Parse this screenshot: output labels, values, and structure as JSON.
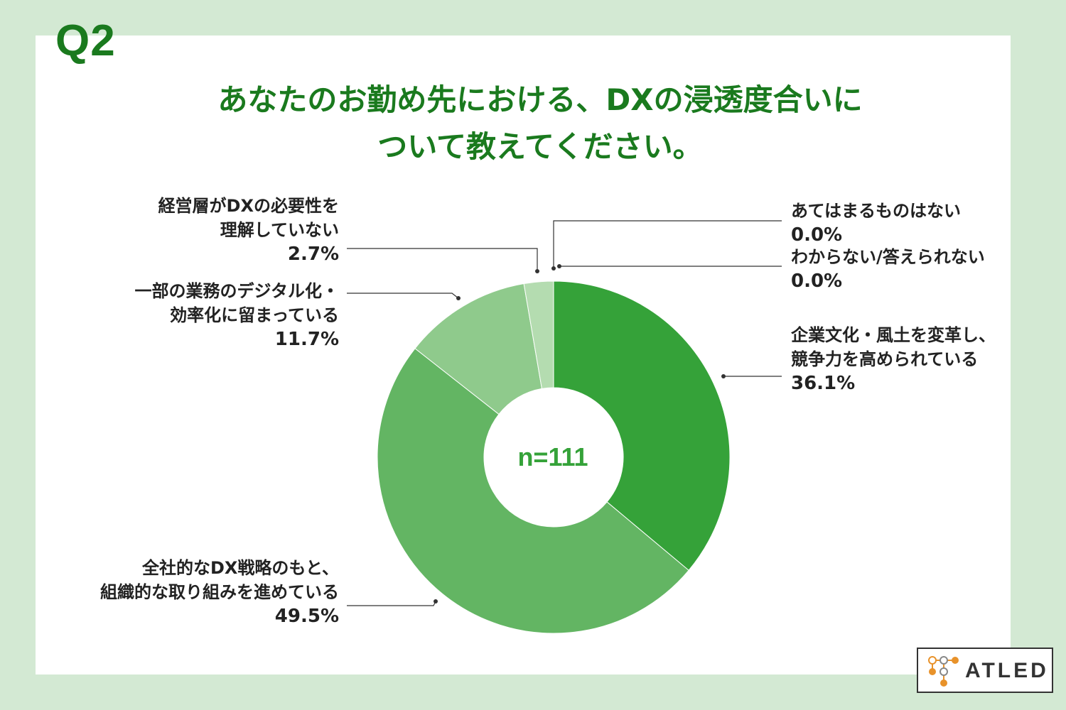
{
  "question_label": "Q2",
  "title_lines": [
    "あなたのお勤め先における、DXの浸透度合いに",
    "ついて教えてください。"
  ],
  "center_label": "n=111",
  "colors": {
    "background": "#d3e9d3",
    "title": "#1a7a1e",
    "slice_1": "#35a239",
    "slice_2": "#63b563",
    "slice_3": "#8fca8c",
    "slice_4": "#b4dcb0",
    "slice_5": "#cfe9cc",
    "slice_6": "#e0f1dd"
  },
  "logo": {
    "text": "ATLED"
  },
  "chart_data": {
    "type": "pie",
    "subtype": "donut",
    "start_angle_deg": 0,
    "direction": "clockwise",
    "sample_size": "n=111",
    "slices": [
      {
        "label_lines": [
          "企業文化・風土を変革し、",
          "競争力を高められている"
        ],
        "value": 36.1,
        "value_label": "36.1%",
        "color": "#35a239"
      },
      {
        "label_lines": [
          "全社的なDX戦略のもと、",
          "組織的な取り組みを進めている"
        ],
        "value": 49.5,
        "value_label": "49.5%",
        "color": "#63b563"
      },
      {
        "label_lines": [
          "一部の業務のデジタル化・",
          "効率化に留まっている"
        ],
        "value": 11.7,
        "value_label": "11.7%",
        "color": "#8fca8c"
      },
      {
        "label_lines": [
          "経営層がDXの必要性を",
          "理解していない"
        ],
        "value": 2.7,
        "value_label": "2.7%",
        "color": "#b4dcb0"
      },
      {
        "label_lines": [
          "わからない/答えられない"
        ],
        "value": 0.0,
        "value_label": "0.0%",
        "color": "#cfe9cc"
      },
      {
        "label_lines": [
          "あてはまるものはない"
        ],
        "value": 0.0,
        "value_label": "0.0%",
        "color": "#e0f1dd"
      }
    ]
  }
}
